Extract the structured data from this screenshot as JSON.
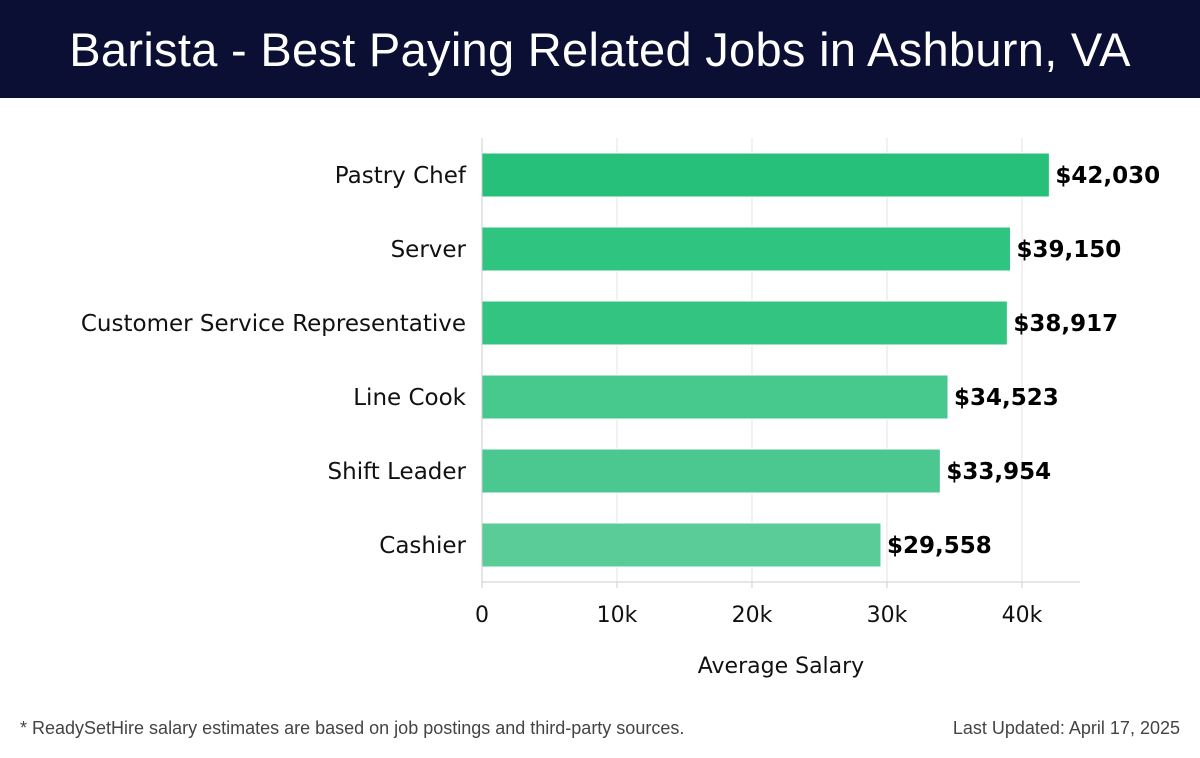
{
  "header": {
    "title": "Barista - Best Paying Related Jobs in Ashburn, VA"
  },
  "footer": {
    "note": "* ReadySetHire salary estimates are based on job postings and third-party sources.",
    "updated": "Last Updated: April 17, 2025"
  },
  "chart_data": {
    "type": "bar",
    "orientation": "horizontal",
    "categories": [
      "Pastry Chef",
      "Server",
      "Customer Service Representative",
      "Line Cook",
      "Shift Leader",
      "Cashier"
    ],
    "values": [
      42030,
      39150,
      38917,
      34523,
      33954,
      29558
    ],
    "value_labels": [
      "$42,030",
      "$39,150",
      "$38,917",
      "$34,523",
      "$33,954",
      "$29,558"
    ],
    "bar_colors": [
      "#27c07a",
      "#2fc47f",
      "#34c482",
      "#47c88d",
      "#4bc88f",
      "#5acc98"
    ],
    "xlabel": "Average Salary",
    "xlim": [
      0,
      44300
    ],
    "xticks": [
      0,
      10000,
      20000,
      30000,
      40000
    ],
    "xtick_labels": [
      "0",
      "10k",
      "20k",
      "30k",
      "40k"
    ],
    "grid": true
  }
}
